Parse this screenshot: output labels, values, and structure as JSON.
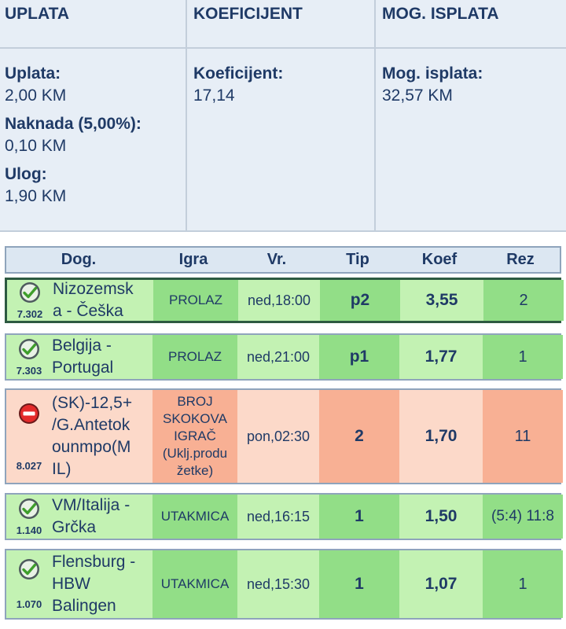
{
  "summary": {
    "headers": {
      "uplata": "UPLATA",
      "koeficijent": "KOEFICIJENT",
      "isplata": "MOG. ISPLATA"
    },
    "uplata_label": "Uplata:",
    "uplata_value": "2,00 KM",
    "naknada_label": "Naknada (5,00%):",
    "naknada_value": "0,10 KM",
    "ulog_label": "Ulog:",
    "ulog_value": "1,90 KM",
    "koef_label": "Koeficijent:",
    "koef_value": "17,14",
    "isplata_label": "Mog. isplata:",
    "isplata_value": "32,57 KM"
  },
  "table": {
    "headers": {
      "dog": "Dog.",
      "igra": "Igra",
      "vr": "Vr.",
      "tip": "Tip",
      "koef": "Koef",
      "rez": "Rez"
    },
    "rows": [
      {
        "status": "won",
        "status_icon": "check-circle-icon",
        "code": "7.302",
        "name_l1": "Nizozemsk",
        "name_l2": "a - Češka",
        "game": "PROLAZ",
        "time": "ned,18:00",
        "tip": "p2",
        "koef": "3,55",
        "rez": "2"
      },
      {
        "status": "won",
        "status_icon": "check-circle-icon",
        "code": "7.303",
        "name_l1": "Belgija -",
        "name_l2": "Portugal",
        "game": "PROLAZ",
        "time": "ned,21:00",
        "tip": "p1",
        "koef": "1,77",
        "rez": "1"
      },
      {
        "status": "lost",
        "status_icon": "minus-circle-icon",
        "code": "8.027",
        "name_l1": "(SK)-12,5+",
        "name_l2": "/G.Antetok",
        "name_l3": "ounmpo(M",
        "name_l4": "IL)",
        "game_l1": "BROJ",
        "game_l2": "SKOKOVA",
        "game_l3": "IGRAČ",
        "game_l4": "(Uklj.produ",
        "game_l5": "žetke)",
        "time": "pon,02:30",
        "tip": "2",
        "koef": "1,70",
        "rez": "11"
      },
      {
        "status": "won",
        "status_icon": "check-circle-icon",
        "code": "1.140",
        "name_l1": "VM/Italija -",
        "name_l2": "Grčka",
        "game": "UTAKMICA",
        "time": "ned,16:15",
        "tip": "1",
        "koef": "1,50",
        "rez": "(5:4) 11:8"
      },
      {
        "status": "won",
        "status_icon": "check-circle-icon",
        "code": "1.070",
        "name_l1": "Flensburg -",
        "name_l2": "HBW",
        "name_l3": "Balingen",
        "game": "UTAKMICA",
        "time": "ned,15:30",
        "tip": "1",
        "koef": "1,07",
        "rez": "1"
      }
    ]
  },
  "colors": {
    "win_light": "#c3f2b3",
    "win_dark": "#92de87",
    "lose_light": "#fcd9c9",
    "lose_dark": "#f8b094",
    "text": "#1f3a66",
    "summary_bg": "#e7eef6"
  }
}
